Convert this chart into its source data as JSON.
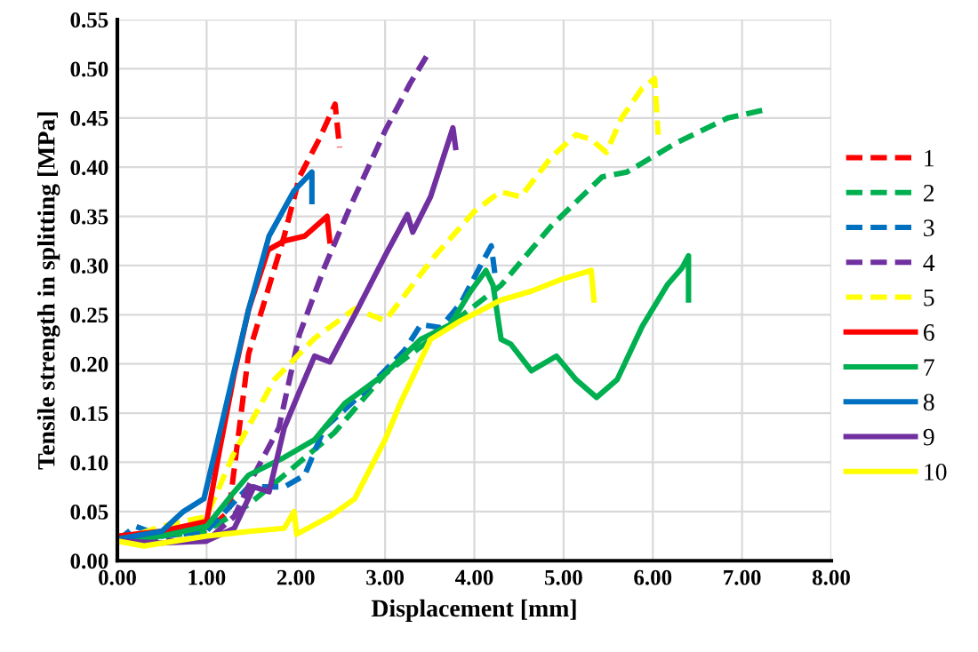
{
  "chart_data": {
    "type": "line",
    "xlabel": "Displacement [mm]",
    "ylabel": "Tensile strength in splitting [MPa]",
    "xlim": [
      0,
      8
    ],
    "ylim": [
      0,
      0.55
    ],
    "xticks": [
      {
        "value": 0,
        "label": "0.00"
      },
      {
        "value": 1,
        "label": "1.00"
      },
      {
        "value": 2,
        "label": "2.00"
      },
      {
        "value": 3,
        "label": "3.00"
      },
      {
        "value": 4,
        "label": "4.00"
      },
      {
        "value": 5,
        "label": "5.00"
      },
      {
        "value": 6,
        "label": "6.00"
      },
      {
        "value": 7,
        "label": "7.00"
      },
      {
        "value": 8,
        "label": "8.00"
      }
    ],
    "yticks": [
      {
        "value": 0,
        "label": "0.00"
      },
      {
        "value": 0.05,
        "label": "0.05"
      },
      {
        "value": 0.1,
        "label": "0.10"
      },
      {
        "value": 0.15,
        "label": "0.15"
      },
      {
        "value": 0.2,
        "label": "0.20"
      },
      {
        "value": 0.25,
        "label": "0.25"
      },
      {
        "value": 0.3,
        "label": "0.30"
      },
      {
        "value": 0.35,
        "label": "0.35"
      },
      {
        "value": 0.4,
        "label": "0.40"
      },
      {
        "value": 0.45,
        "label": "0.45"
      },
      {
        "value": 0.5,
        "label": "0.50"
      },
      {
        "value": 0.55,
        "label": "0.55"
      }
    ],
    "grid": true,
    "legend": "right",
    "marker": "none",
    "series": [
      {
        "name": "1",
        "color": "#ff0000",
        "line_style": "dashed",
        "x": [
          0,
          0.5,
          1.0,
          1.25,
          1.47,
          1.87,
          2.04,
          2.27,
          2.44,
          2.49
        ],
        "values": [
          0.02,
          0.025,
          0.03,
          0.05,
          0.21,
          0.33,
          0.39,
          0.43,
          0.464,
          0.42
        ]
      },
      {
        "name": "2",
        "color": "#00b050",
        "line_style": "dashed",
        "x": [
          0,
          0.5,
          1.0,
          1.47,
          1.87,
          2.43,
          3.0,
          3.73,
          4.3,
          4.86,
          5.43,
          5.71,
          6.27,
          6.84,
          7.24
        ],
        "values": [
          0.02,
          0.025,
          0.03,
          0.057,
          0.087,
          0.13,
          0.19,
          0.24,
          0.28,
          0.34,
          0.39,
          0.395,
          0.425,
          0.45,
          0.458
        ]
      },
      {
        "name": "3",
        "color": "#0070c0",
        "line_style": "dashed",
        "x": [
          0,
          0.2,
          0.5,
          1.0,
          1.47,
          1.87,
          2.1,
          2.32,
          2.77,
          3.22,
          3.4,
          3.62,
          3.85,
          4.07,
          4.19,
          4.24
        ],
        "values": [
          0.02,
          0.035,
          0.025,
          0.03,
          0.075,
          0.075,
          0.087,
          0.135,
          0.172,
          0.214,
          0.24,
          0.237,
          0.262,
          0.3,
          0.32,
          0.285
        ]
      },
      {
        "name": "4",
        "color": "#7030a0",
        "line_style": "dashed",
        "x": [
          0,
          0.5,
          1.0,
          1.31,
          1.53,
          1.81,
          2.04,
          2.32,
          2.6,
          3.0,
          3.28,
          3.48
        ],
        "values": [
          0.02,
          0.02,
          0.02,
          0.045,
          0.087,
          0.135,
          0.23,
          0.298,
          0.358,
          0.437,
          0.485,
          0.515
        ]
      },
      {
        "name": "5",
        "color": "#ffff00",
        "line_style": "dashed",
        "x": [
          0,
          0.5,
          1.0,
          1.31,
          1.76,
          2.21,
          2.66,
          3.0,
          3.56,
          4.0,
          4.29,
          4.52,
          4.86,
          5.14,
          5.31,
          5.48,
          5.65,
          5.88,
          6.02,
          6.06
        ],
        "values": [
          0.02,
          0.035,
          0.045,
          0.11,
          0.184,
          0.226,
          0.256,
          0.244,
          0.31,
          0.355,
          0.375,
          0.37,
          0.41,
          0.433,
          0.428,
          0.415,
          0.45,
          0.48,
          0.49,
          0.433
        ]
      },
      {
        "name": "6",
        "color": "#ff0000",
        "line_style": "solid",
        "x": [
          0,
          0.5,
          1.0,
          1.14,
          1.31,
          1.47,
          1.69,
          1.87,
          2.1,
          2.35,
          2.38
        ],
        "values": [
          0.025,
          0.03,
          0.04,
          0.11,
          0.19,
          0.255,
          0.316,
          0.325,
          0.33,
          0.35,
          0.325
        ]
      },
      {
        "name": "7",
        "color": "#00b050",
        "line_style": "solid",
        "x": [
          0,
          0.5,
          1.0,
          1.31,
          1.47,
          1.87,
          2.21,
          2.55,
          3.0,
          3.4,
          3.73,
          3.96,
          4.13,
          4.21,
          4.3,
          4.41,
          4.64,
          4.92,
          5.14,
          5.37,
          5.6,
          5.88,
          6.16,
          6.33,
          6.4,
          6.4
        ],
        "values": [
          0.02,
          0.025,
          0.035,
          0.07,
          0.087,
          0.105,
          0.123,
          0.16,
          0.19,
          0.225,
          0.24,
          0.274,
          0.295,
          0.28,
          0.225,
          0.22,
          0.193,
          0.208,
          0.184,
          0.166,
          0.184,
          0.238,
          0.28,
          0.298,
          0.31,
          0.265
        ]
      },
      {
        "name": "8",
        "color": "#0070c0",
        "line_style": "solid",
        "x": [
          0,
          0.5,
          0.74,
          0.97,
          1.19,
          1.47,
          1.7,
          1.98,
          2.18,
          2.18
        ],
        "values": [
          0.022,
          0.03,
          0.05,
          0.063,
          0.147,
          0.255,
          0.33,
          0.376,
          0.395,
          0.365
        ]
      },
      {
        "name": "9",
        "color": "#7030a0",
        "line_style": "solid",
        "x": [
          0,
          0.5,
          1.0,
          1.31,
          1.53,
          1.7,
          1.87,
          2.04,
          2.21,
          2.38,
          2.66,
          3.0,
          3.25,
          3.31,
          3.51,
          3.76,
          3.79
        ],
        "values": [
          0.02,
          0.018,
          0.02,
          0.033,
          0.075,
          0.07,
          0.135,
          0.172,
          0.208,
          0.202,
          0.25,
          0.31,
          0.352,
          0.334,
          0.37,
          0.44,
          0.42
        ]
      },
      {
        "name": "10",
        "color": "#ffff00",
        "line_style": "solid",
        "x": [
          0,
          0.3,
          1.0,
          1.5,
          1.87,
          1.98,
          2.01,
          2.38,
          2.66,
          3.0,
          3.17,
          3.51,
          3.85,
          4.3,
          4.64,
          4.98,
          5.31,
          5.34
        ],
        "values": [
          0.02,
          0.015,
          0.025,
          0.03,
          0.033,
          0.05,
          0.027,
          0.045,
          0.063,
          0.123,
          0.16,
          0.225,
          0.244,
          0.265,
          0.274,
          0.286,
          0.295,
          0.265
        ]
      }
    ]
  }
}
